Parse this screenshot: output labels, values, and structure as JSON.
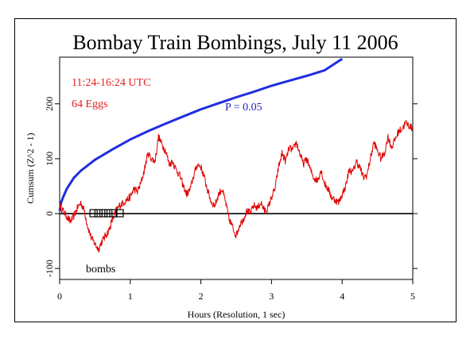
{
  "chart_data": {
    "type": "line",
    "title": "Bombay Train Bombings, July 11 2006",
    "xlabel": "Hours (Resolution, 1 sec)",
    "ylabel": "Cumsum (Z^2 - 1)",
    "xlim": [
      0,
      5
    ],
    "ylim": [
      -120,
      285
    ],
    "x_ticks": [
      "0",
      "1",
      "2",
      "3",
      "4",
      "5"
    ],
    "y_ticks": [
      "-100",
      "0",
      "100",
      "200"
    ],
    "annotations": {
      "time_range": "11:24-16:24 UTC",
      "eggs": "64 Eggs",
      "p_label": "P = 0.05",
      "bombs_label": "bombs"
    },
    "bomb_markers_hours": [
      0.48,
      0.55,
      0.62,
      0.69,
      0.76,
      0.85
    ],
    "series": [
      {
        "color": "#e00000",
        "x": [
          0,
          0.05,
          0.1,
          0.15,
          0.2,
          0.25,
          0.3,
          0.35,
          0.4,
          0.45,
          0.5,
          0.55,
          0.6,
          0.65,
          0.7,
          0.75,
          0.8,
          0.85,
          0.9,
          0.95,
          1.0,
          1.05,
          1.1,
          1.15,
          1.2,
          1.25,
          1.3,
          1.35,
          1.4,
          1.45,
          1.5,
          1.55,
          1.6,
          1.65,
          1.7,
          1.75,
          1.8,
          1.85,
          1.9,
          1.95,
          2.0,
          2.05,
          2.1,
          2.15,
          2.2,
          2.25,
          2.3,
          2.35,
          2.4,
          2.45,
          2.5,
          2.55,
          2.6,
          2.65,
          2.7,
          2.75,
          2.8,
          2.85,
          2.9,
          2.95,
          3.0,
          3.05,
          3.1,
          3.15,
          3.2,
          3.25,
          3.3,
          3.35,
          3.4,
          3.45,
          3.5,
          3.55,
          3.6,
          3.65,
          3.7,
          3.75,
          3.8,
          3.85,
          3.9,
          3.95,
          4.0,
          4.05,
          4.1,
          4.15,
          4.2,
          4.25,
          4.3,
          4.35,
          4.4,
          4.45,
          4.5,
          4.55,
          4.6,
          4.65,
          4.7,
          4.75,
          4.8,
          4.85,
          4.9,
          4.95,
          5.0
        ],
        "y": [
          15,
          5,
          -5,
          -15,
          -5,
          10,
          20,
          5,
          -25,
          -45,
          -55,
          -65,
          -50,
          -40,
          -30,
          -10,
          5,
          15,
          20,
          25,
          30,
          45,
          40,
          55,
          80,
          110,
          100,
          95,
          140,
          125,
          115,
          90,
          95,
          80,
          70,
          50,
          35,
          45,
          70,
          90,
          85,
          65,
          40,
          20,
          15,
          35,
          45,
          20,
          -10,
          -25,
          -40,
          -20,
          -10,
          5,
          0,
          15,
          10,
          20,
          5,
          10,
          30,
          45,
          85,
          110,
          95,
          120,
          115,
          130,
          110,
          90,
          100,
          80,
          65,
          60,
          80,
          55,
          45,
          30,
          25,
          20,
          35,
          50,
          80,
          75,
          95,
          85,
          65,
          70,
          100,
          130,
          115,
          100,
          110,
          140,
          120,
          135,
          150,
          155,
          165,
          160,
          155
        ]
      },
      {
        "name": "P = 0.05",
        "color": "#1e2ee0",
        "x": [
          0,
          0.02,
          0.05,
          0.1,
          0.2,
          0.3,
          0.5,
          0.75,
          1.0,
          1.25,
          1.5,
          1.75,
          2.0,
          2.25,
          2.5,
          2.75,
          3.0,
          3.25,
          3.5,
          3.75,
          4.0
        ],
        "y": [
          5,
          20,
          30,
          45,
          65,
          78,
          98,
          117,
          135,
          150,
          164,
          177,
          190,
          201,
          212,
          222,
          233,
          242,
          251,
          261,
          282
        ]
      }
    ]
  }
}
